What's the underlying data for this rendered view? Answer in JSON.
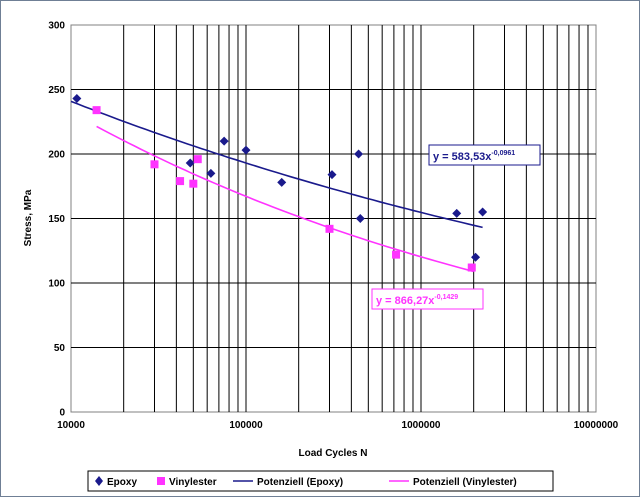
{
  "chart_data": {
    "type": "scatter",
    "xlabel": "Load Cycles N",
    "ylabel": "Stress, MPa",
    "x_scale": "log",
    "xlim": [
      10000,
      10000000
    ],
    "ylim": [
      0,
      300
    ],
    "x_ticks": [
      "10000",
      "100000",
      "1000000",
      "10000000"
    ],
    "y_ticks": [
      "0",
      "50",
      "100",
      "150",
      "200",
      "250",
      "300"
    ],
    "grid": true,
    "legend_position": "bottom",
    "series": [
      {
        "name": "Epoxy",
        "marker": "diamond",
        "color": "#1a1a8c",
        "points": [
          [
            10800,
            243
          ],
          [
            48000,
            193
          ],
          [
            63000,
            185
          ],
          [
            75000,
            210
          ],
          [
            100000,
            203
          ],
          [
            160000,
            178
          ],
          [
            310000,
            184
          ],
          [
            440000,
            200
          ],
          [
            450000,
            150
          ],
          [
            1600000,
            154
          ],
          [
            2050000,
            120
          ],
          [
            2250000,
            155
          ]
        ]
      },
      {
        "name": "Vinylester",
        "marker": "square",
        "color": "#ff33ff",
        "points": [
          [
            14000,
            234
          ],
          [
            30000,
            192
          ],
          [
            42000,
            179
          ],
          [
            50000,
            177
          ],
          [
            53000,
            196
          ],
          [
            300000,
            142
          ],
          [
            720000,
            122
          ],
          [
            1950000,
            112
          ]
        ]
      }
    ],
    "trendlines": [
      {
        "name": "Potenziell (Epoxy)",
        "color": "#1a1a8c",
        "a": 583.53,
        "b": -0.0961,
        "x_range": [
          10000,
          2250000
        ],
        "equation": "y = 583,53x",
        "exponent": "-0,0961"
      },
      {
        "name": "Potenziell (Vinylester)",
        "color": "#ff33ff",
        "a": 866.27,
        "b": -0.1429,
        "x_range": [
          14000,
          2000000
        ],
        "equation": "y = 866,27x",
        "exponent": "-0,1429"
      }
    ]
  }
}
